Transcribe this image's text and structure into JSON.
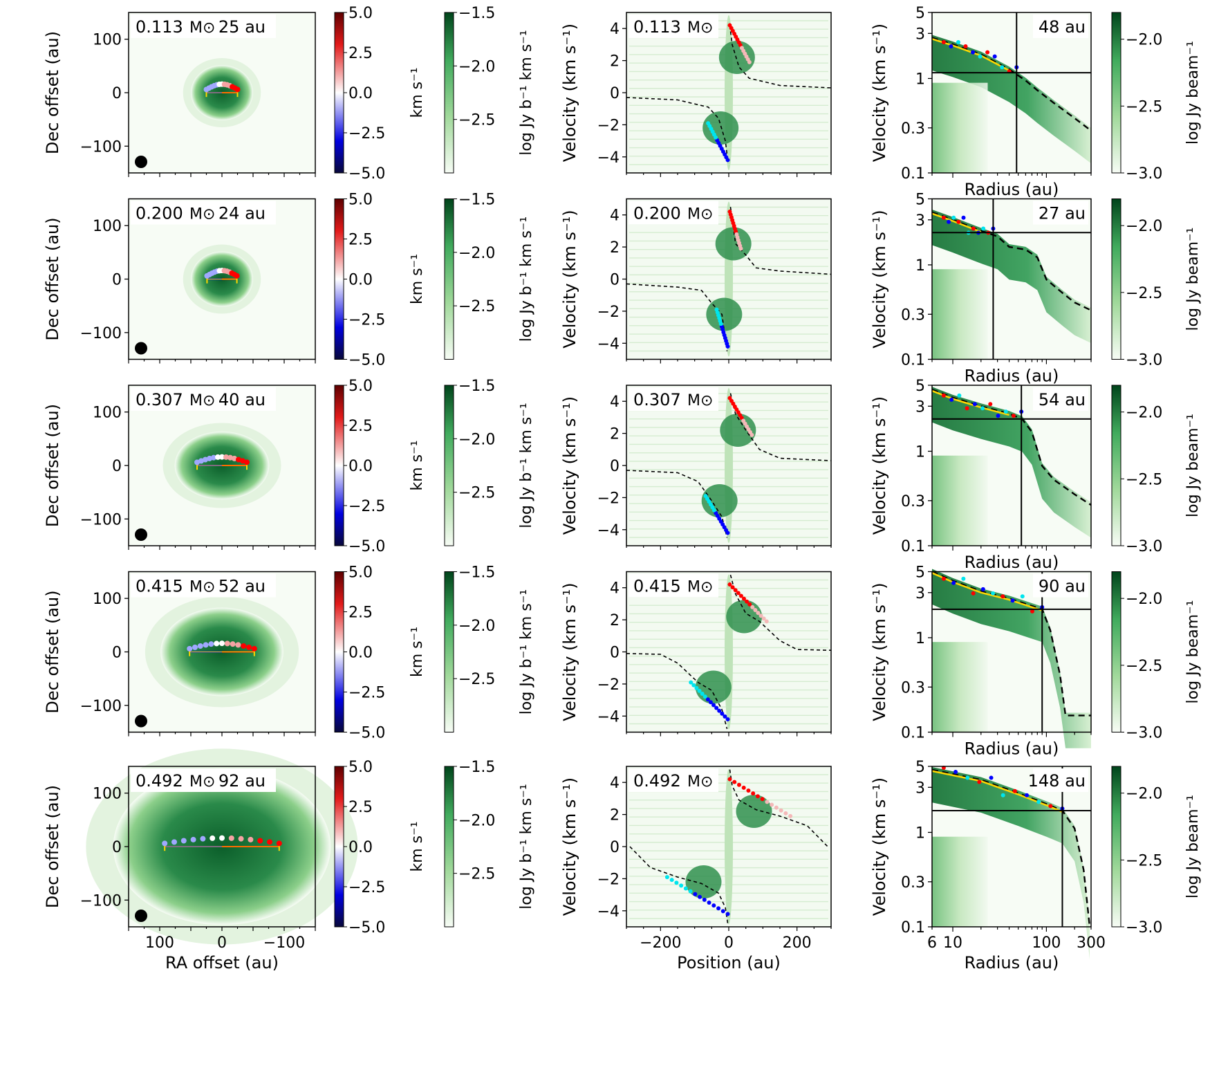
{
  "figure": {
    "axis_labels": {
      "dec_offset": "Dec offset (au)",
      "ra_offset": "RA offset (au)",
      "velocity_kms": "Velocity (km s⁻¹)",
      "position": "Position (au)",
      "radius": "Radius (au)",
      "colorbar_velocity": "km s⁻¹",
      "colorbar_mom0": "log Jy b⁻¹ km s⁻¹",
      "colorbar_pv": "log Jy beam⁻¹"
    },
    "colors": {
      "green_dark": "#00441b",
      "green_light": "#f7fcf5",
      "redshifted": "#ff0000",
      "blueshifted": "#0000ff",
      "fit_line": "#ffd700",
      "cyan_points": "#00e5ee",
      "pink_points": "#f4b8b8"
    },
    "ticks": {
      "mom_y": [
        "100",
        "0",
        "−100"
      ],
      "mom_x": [
        "100",
        "0",
        "−100"
      ],
      "vel_cb": [
        "5.0",
        "2.5",
        "0.0",
        "−2.5",
        "−5.0"
      ],
      "mom0_cb": [
        "−1.5",
        "−2.0",
        "−2.5"
      ],
      "pv_y": [
        "4",
        "2",
        "0",
        "−2",
        "−4"
      ],
      "pv_x": [
        "−200",
        "0",
        "200"
      ],
      "rad_y": [
        "5",
        "3",
        "1",
        "0.3",
        "0.1"
      ],
      "rad_x": [
        "6",
        "10",
        "100",
        "300"
      ],
      "rad_cb": [
        "−2.0",
        "−2.5",
        "−3.0"
      ]
    }
  },
  "chart_data": [
    {
      "type": "heatmap",
      "row": 1,
      "mass_label": "0.113",
      "mass_unit": "M⊙",
      "size_label": "25 au",
      "radius_label": "48 au",
      "disk_radius_au": 25,
      "pv_turnover_au": 48,
      "rv_cross_radius_au": 48,
      "rv_cross_velocity_kms": 1.15,
      "mom_xlim": [
        150,
        -150
      ],
      "mom_ylim": [
        -150,
        150
      ],
      "vel_clim": [
        -5.0,
        5.0
      ],
      "mom0_clim": [
        -3.0,
        -1.5
      ],
      "pv_xlim": [
        -300,
        300
      ],
      "pv_ylim": [
        -5,
        5
      ],
      "rad_xlim": [
        6,
        300
      ],
      "rad_ylim": [
        0.1,
        5
      ],
      "rad_clim": [
        -3.0,
        -1.8
      ],
      "pv_fit_curve": [
        [
          -300,
          -0.3
        ],
        [
          -150,
          -0.45
        ],
        [
          -60,
          -0.9
        ],
        [
          -30,
          -1.6
        ],
        [
          -10,
          -3.0
        ],
        [
          -3,
          -4.2
        ],
        [
          3,
          4.2
        ],
        [
          10,
          3.0
        ],
        [
          30,
          1.6
        ],
        [
          60,
          0.9
        ],
        [
          150,
          0.45
        ],
        [
          300,
          0.3
        ]
      ],
      "rad_fit_curve": [
        [
          6,
          2.7
        ],
        [
          10,
          2.3
        ],
        [
          20,
          1.8
        ],
        [
          40,
          1.25
        ],
        [
          60,
          0.95
        ],
        [
          80,
          0.75
        ],
        [
          120,
          0.55
        ],
        [
          200,
          0.38
        ],
        [
          300,
          0.28
        ]
      ]
    },
    {
      "type": "heatmap",
      "row": 2,
      "mass_label": "0.200",
      "mass_unit": "M⊙",
      "size_label": "24 au",
      "radius_label": "27 au",
      "disk_radius_au": 24,
      "pv_turnover_au": 27,
      "rv_cross_radius_au": 27,
      "rv_cross_velocity_kms": 2.2,
      "mom_xlim": [
        150,
        -150
      ],
      "mom_ylim": [
        -150,
        150
      ],
      "vel_clim": [
        -5.0,
        5.0
      ],
      "mom0_clim": [
        -3.0,
        -1.5
      ],
      "pv_xlim": [
        -300,
        300
      ],
      "pv_ylim": [
        -5,
        5
      ],
      "rad_xlim": [
        6,
        300
      ],
      "rad_ylim": [
        0.1,
        5
      ],
      "rad_clim": [
        -3.0,
        -1.8
      ],
      "pv_fit_curve": [
        [
          -300,
          -0.3
        ],
        [
          -150,
          -0.5
        ],
        [
          -80,
          -0.7
        ],
        [
          -50,
          -1.5
        ],
        [
          -20,
          -2.2
        ],
        [
          -5,
          -4.5
        ],
        [
          5,
          4.5
        ],
        [
          20,
          2.2
        ],
        [
          50,
          1.5
        ],
        [
          80,
          0.7
        ],
        [
          150,
          0.5
        ],
        [
          300,
          0.3
        ]
      ],
      "rad_fit_curve": [
        [
          6,
          3.6
        ],
        [
          10,
          3.0
        ],
        [
          20,
          2.3
        ],
        [
          30,
          2.0
        ],
        [
          40,
          1.55
        ],
        [
          60,
          1.45
        ],
        [
          80,
          1.2
        ],
        [
          100,
          0.7
        ],
        [
          150,
          0.5
        ],
        [
          200,
          0.4
        ],
        [
          300,
          0.33
        ]
      ]
    },
    {
      "type": "heatmap",
      "row": 3,
      "mass_label": "0.307",
      "mass_unit": "M⊙",
      "size_label": "40 au",
      "radius_label": "54 au",
      "disk_radius_au": 40,
      "pv_turnover_au": 54,
      "rv_cross_radius_au": 54,
      "rv_cross_velocity_kms": 2.2,
      "mom_xlim": [
        150,
        -150
      ],
      "mom_ylim": [
        -150,
        150
      ],
      "vel_clim": [
        -5.0,
        5.0
      ],
      "mom0_clim": [
        -3.0,
        -1.5
      ],
      "pv_xlim": [
        -300,
        300
      ],
      "pv_ylim": [
        -5,
        5
      ],
      "rad_xlim": [
        6,
        300
      ],
      "rad_ylim": [
        0.1,
        5
      ],
      "rad_clim": [
        -3.0,
        -1.8
      ],
      "pv_fit_curve": [
        [
          -300,
          -0.3
        ],
        [
          -150,
          -0.45
        ],
        [
          -90,
          -1.0
        ],
        [
          -50,
          -2.2
        ],
        [
          -20,
          -3.2
        ],
        [
          -5,
          -4.5
        ],
        [
          5,
          4.5
        ],
        [
          20,
          3.2
        ],
        [
          50,
          2.2
        ],
        [
          90,
          1.0
        ],
        [
          150,
          0.45
        ],
        [
          300,
          0.3
        ]
      ],
      "rad_fit_curve": [
        [
          6,
          4.5
        ],
        [
          10,
          3.7
        ],
        [
          20,
          3.0
        ],
        [
          40,
          2.5
        ],
        [
          55,
          2.2
        ],
        [
          70,
          1.6
        ],
        [
          90,
          0.7
        ],
        [
          120,
          0.5
        ],
        [
          200,
          0.35
        ],
        [
          300,
          0.27
        ]
      ]
    },
    {
      "type": "heatmap",
      "row": 4,
      "mass_label": "0.415",
      "mass_unit": "M⊙",
      "size_label": "52 au",
      "radius_label": "90 au",
      "disk_radius_au": 52,
      "pv_turnover_au": 90,
      "rv_cross_radius_au": 90,
      "rv_cross_velocity_kms": 2.0,
      "mom_xlim": [
        150,
        -150
      ],
      "mom_ylim": [
        -150,
        150
      ],
      "vel_clim": [
        -5.0,
        5.0
      ],
      "mom0_clim": [
        -3.0,
        -1.5
      ],
      "pv_xlim": [
        -300,
        300
      ],
      "pv_ylim": [
        -5,
        5
      ],
      "rad_xlim": [
        6,
        300
      ],
      "rad_ylim": [
        0.1,
        5
      ],
      "rad_clim": [
        -3.0,
        -1.8
      ],
      "pv_fit_curve": [
        [
          -300,
          -0.1
        ],
        [
          -200,
          -0.15
        ],
        [
          -150,
          -0.7
        ],
        [
          -90,
          -1.9
        ],
        [
          -50,
          -2.4
        ],
        [
          -20,
          -3.6
        ],
        [
          -5,
          -4.8
        ],
        [
          5,
          4.8
        ],
        [
          20,
          3.6
        ],
        [
          50,
          2.4
        ],
        [
          90,
          1.9
        ],
        [
          150,
          0.7
        ],
        [
          200,
          0.15
        ],
        [
          300,
          0.1
        ]
      ],
      "rad_fit_curve": [
        [
          6,
          5.0
        ],
        [
          10,
          4.0
        ],
        [
          20,
          3.1
        ],
        [
          40,
          2.6
        ],
        [
          90,
          2.0
        ],
        [
          110,
          1.2
        ],
        [
          140,
          0.4
        ],
        [
          160,
          0.15
        ],
        [
          300,
          0.15
        ]
      ]
    },
    {
      "type": "heatmap",
      "row": 5,
      "mass_label": "0.492",
      "mass_unit": "M⊙",
      "size_label": "92 au",
      "radius_label": "148 au",
      "disk_radius_au": 92,
      "pv_turnover_au": 148,
      "rv_cross_radius_au": 148,
      "rv_cross_velocity_kms": 1.7,
      "mom_xlim": [
        150,
        -150
      ],
      "mom_ylim": [
        -150,
        150
      ],
      "vel_clim": [
        -5.0,
        5.0
      ],
      "mom0_clim": [
        -3.0,
        -1.5
      ],
      "pv_xlim": [
        -300,
        300
      ],
      "pv_ylim": [
        -5,
        5
      ],
      "rad_xlim": [
        6,
        300
      ],
      "rad_ylim": [
        0.1,
        5
      ],
      "rad_clim": [
        -3.0,
        -1.8
      ],
      "pv_fit_curve": [
        [
          -290,
          0.0
        ],
        [
          -230,
          -1.3
        ],
        [
          -150,
          -1.9
        ],
        [
          -80,
          -2.3
        ],
        [
          -30,
          -2.9
        ],
        [
          -10,
          -3.8
        ],
        [
          -3,
          -4.8
        ],
        [
          3,
          4.8
        ],
        [
          10,
          3.8
        ],
        [
          30,
          2.9
        ],
        [
          80,
          2.3
        ],
        [
          150,
          1.9
        ],
        [
          230,
          1.3
        ],
        [
          290,
          0.0
        ]
      ],
      "rad_fit_curve": [
        [
          6,
          4.6
        ],
        [
          20,
          3.6
        ],
        [
          50,
          2.6
        ],
        [
          100,
          2.0
        ],
        [
          148,
          1.7
        ],
        [
          200,
          1.1
        ],
        [
          250,
          0.4
        ],
        [
          290,
          0.1
        ]
      ]
    }
  ]
}
